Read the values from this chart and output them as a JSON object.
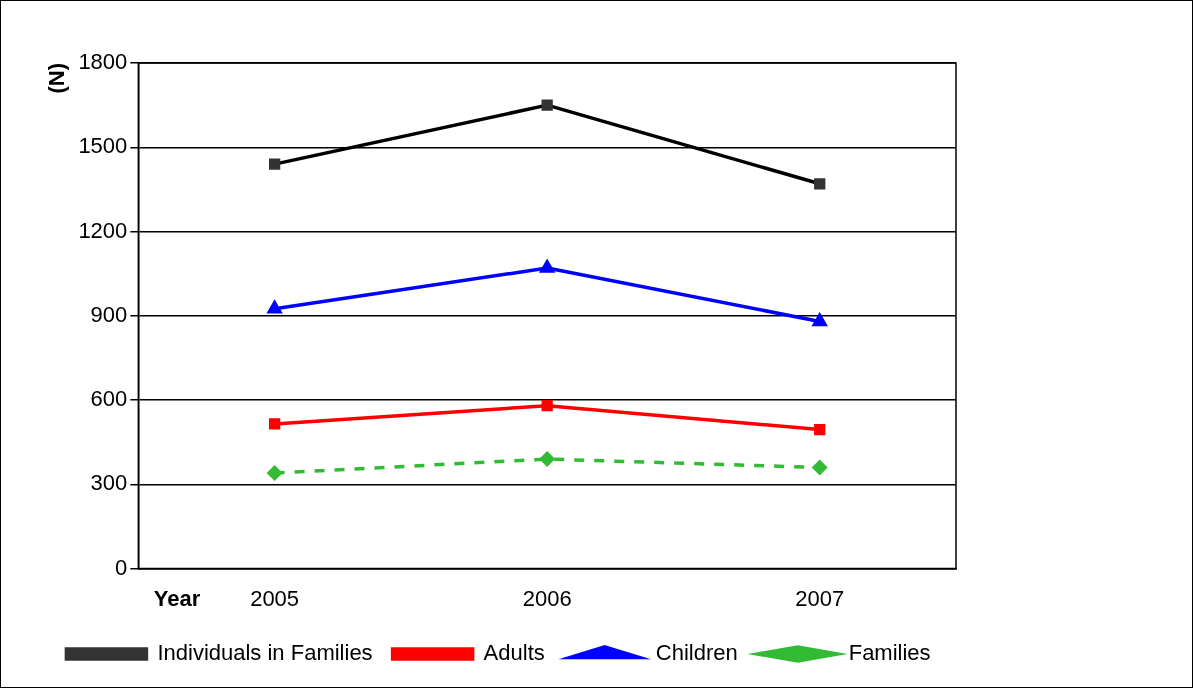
{
  "chart_data": {
    "type": "line",
    "xlabel": "Year",
    "ylabel": "(N)",
    "categories": [
      "2005",
      "2006",
      "2007"
    ],
    "series": [
      {
        "name": "Individuals in Families",
        "color": "#000000",
        "values": [
          1440,
          1650,
          1370
        ],
        "marker": "square",
        "line_style": "solid"
      },
      {
        "name": "Adults",
        "color": "#ff0000",
        "values": [
          515,
          580,
          495
        ],
        "marker": "square",
        "line_style": "solid"
      },
      {
        "name": "Children",
        "color": "#0000ff",
        "values": [
          925,
          1070,
          880
        ],
        "marker": "triangle",
        "line_style": "solid"
      },
      {
        "name": "Families",
        "color": "#33bb33",
        "values": [
          340,
          390,
          360
        ],
        "marker": "diamond",
        "line_style": "dashed"
      }
    ],
    "ylim": [
      0,
      1800
    ],
    "yticks": [
      0,
      300,
      600,
      900,
      1200,
      1500,
      1800
    ],
    "grid": "y",
    "legend": "bottom"
  }
}
